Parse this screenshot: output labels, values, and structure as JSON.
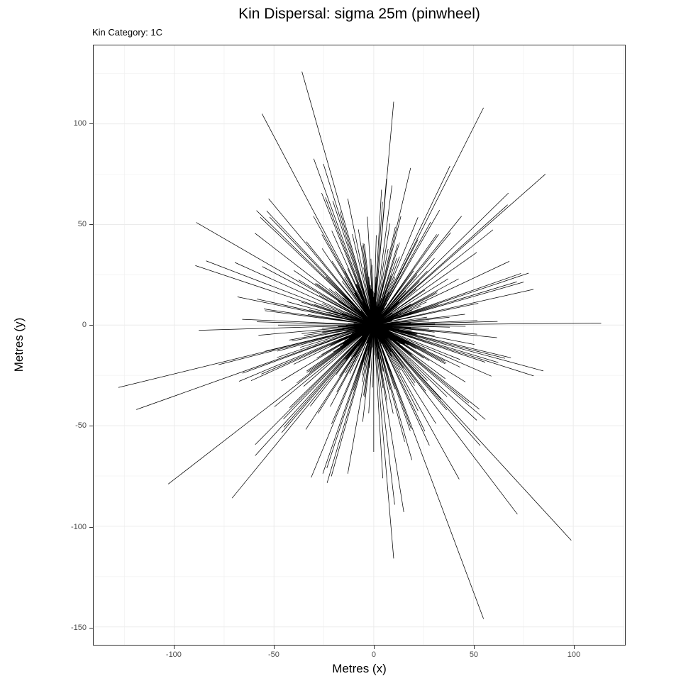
{
  "header": {
    "title": "Kin Dispersal: sigma 25m (pinwheel)",
    "subtitle": "Kin Category: 1C"
  },
  "colors": {
    "background": "#ffffff",
    "panel_border": "#333333",
    "grid_major": "#ebebeb",
    "grid_minor": "#f0f0f0",
    "segment_stroke": "#000000",
    "tick_label": "#4d4d4d",
    "tick_mark": "#333333"
  },
  "chart_data": {
    "type": "line-segments",
    "title": "Kin Dispersal: sigma 25m (pinwheel)",
    "subtitle": "Kin Category: 1C",
    "xlabel": "Metres (x)",
    "ylabel": "Metres (y)",
    "sigma_m": 25,
    "kin_category": "1C",
    "legend": "none",
    "grid": "major+minor",
    "xlim": [
      -140.4,
      125.9
    ],
    "ylim": [
      -158.9,
      139.0
    ],
    "x_major_ticks": [
      -100,
      -50,
      0,
      50,
      100
    ],
    "y_major_ticks": [
      -150,
      -100,
      -50,
      0,
      50,
      100
    ],
    "x_minor_ticks": [
      -125,
      -75,
      -25,
      25,
      75,
      125
    ],
    "y_minor_ticks": [
      -125,
      -75,
      -25,
      25,
      75,
      125
    ],
    "origin": [
      0,
      0
    ],
    "n_segments": 447,
    "spoke_fan": {
      "angle_start_deg": 0,
      "angle_step_deg": 2.5,
      "spokes_per_ring": 144,
      "ring_offsets_deg": [
        0,
        0.9,
        1.7
      ],
      "ring_length_scale": [
        1.0,
        0.93,
        1.07
      ],
      "length_index_stride_k": 3,
      "length_index_stride_ring": 17
    },
    "length_table_m": [
      3,
      28,
      9,
      52,
      17,
      70,
      5,
      38,
      73,
      12,
      45,
      24,
      4,
      60,
      14,
      82,
      7,
      33,
      2,
      55,
      20,
      34,
      10,
      41,
      6,
      66,
      29,
      13,
      48,
      3,
      75,
      18,
      8,
      36,
      58,
      84,
      5,
      26,
      88,
      11,
      43,
      22,
      63,
      4,
      31,
      15,
      50
    ],
    "extreme_segments_xy": [
      [
        -36,
        126
      ],
      [
        10,
        111
      ],
      [
        55,
        108
      ],
      [
        -56,
        105
      ],
      [
        86,
        75
      ],
      [
        114,
        1
      ],
      [
        -128,
        -31
      ],
      [
        -119,
        -42
      ],
      [
        -103,
        -79
      ],
      [
        -71,
        -86
      ],
      [
        10,
        -116
      ],
      [
        55,
        -146
      ],
      [
        99,
        -107
      ],
      [
        72,
        -94
      ],
      [
        -89,
        51
      ]
    ],
    "segment_stroke_width": 0.75
  }
}
